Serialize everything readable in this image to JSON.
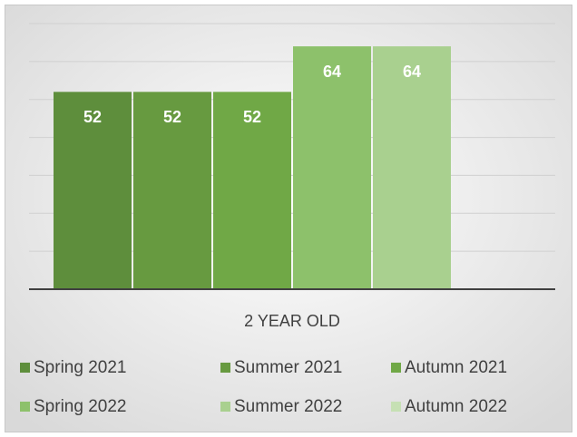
{
  "chart_data": {
    "type": "bar",
    "categories": [
      "2 YEAR OLD"
    ],
    "series": [
      {
        "name": "Spring 2021",
        "color": "#5e8e3c",
        "values": [
          52
        ]
      },
      {
        "name": "Summer 2021",
        "color": "#679a40",
        "values": [
          52
        ]
      },
      {
        "name": "Autumn 2021",
        "color": "#70a846",
        "values": [
          52
        ]
      },
      {
        "name": "Spring 2022",
        "color": "#8dc16b",
        "values": [
          64
        ]
      },
      {
        "name": "Summer 2022",
        "color": "#a9d08f",
        "values": [
          64
        ]
      },
      {
        "name": "Autumn 2022",
        "color": "#c6e0b4",
        "values": [
          null
        ]
      }
    ],
    "ylim": [
      0,
      70
    ],
    "yticks": [
      0,
      10,
      20,
      30,
      40,
      50,
      60,
      70
    ],
    "grid": true
  }
}
